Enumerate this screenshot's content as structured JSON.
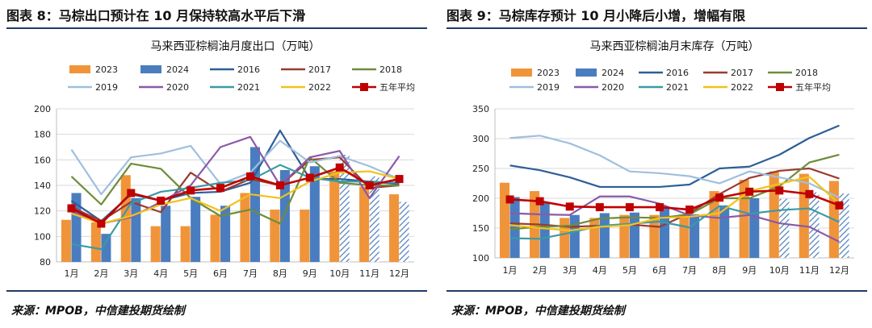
{
  "left": {
    "header": "图表 8：马棕出口预计在 10 月保持较高水平后下滑",
    "source": "来源：MPOB，中信建投期货绘制"
  },
  "right": {
    "header": "图表 9：马棕库存预计 10 月小降后小增，增幅有限",
    "source": "来源：MPOB，中信建投期货绘制"
  },
  "colors": {
    "2023": "#f0943a",
    "2024": "#4a7dbf",
    "2016": "#2d5e95",
    "2017": "#9b3a2f",
    "2018": "#6f8c3a",
    "2019": "#9fbfdf",
    "2020": "#8a5aa8",
    "2021": "#3a9aa6",
    "2022": "#f2c21a",
    "五年平均": "#c00000"
  },
  "chart_data": [
    {
      "type": "bar",
      "title": "马来西亚棕榈油月度出口（万吨）",
      "ylim": [
        80,
        200
      ],
      "yticks": [
        80,
        100,
        120,
        140,
        160,
        180,
        200
      ],
      "categories": [
        "1月",
        "2月",
        "3月",
        "4月",
        "5月",
        "6月",
        "7月",
        "8月",
        "9月",
        "10月",
        "11月",
        "12月"
      ],
      "hatched_from_index": 9,
      "bar_series": [
        {
          "name": "2023",
          "values": [
            113,
            111,
            148,
            108,
            108,
            117,
            134,
            121,
            121,
            151,
            139,
            133
          ]
        },
        {
          "name": "2024",
          "values": [
            134,
            102,
            130,
            124,
            131,
            124,
            170,
            152,
            155,
            164,
            147,
            127
          ]
        }
      ],
      "line_series": [
        {
          "name": "2016",
          "values": [
            128,
            112,
            133,
            128,
            134,
            135,
            142,
            183,
            145,
            145,
            143,
            141
          ]
        },
        {
          "name": "2017",
          "values": [
            123,
            112,
            127,
            119,
            150,
            135,
            145,
            140,
            160,
            162,
            138,
            140
          ]
        },
        {
          "name": "2018",
          "values": [
            147,
            125,
            157,
            153,
            130,
            116,
            121,
            110,
            162,
            142,
            140,
            140
          ]
        },
        {
          "name": "2019",
          "values": [
            168,
            133,
            162,
            165,
            171,
            141,
            150,
            175,
            158,
            163,
            155,
            145
          ]
        },
        {
          "name": "2020",
          "values": [
            120,
            110,
            115,
            127,
            140,
            170,
            178,
            140,
            162,
            167,
            130,
            163
          ]
        },
        {
          "name": "2021",
          "values": [
            94,
            90,
            126,
            135,
            138,
            142,
            144,
            156,
            146,
            143,
            143,
            142
          ]
        },
        {
          "name": "2022",
          "values": [
            118,
            110,
            116,
            125,
            130,
            120,
            133,
            130,
            143,
            150,
            151,
            145
          ]
        },
        {
          "name": "五年平均",
          "values": [
            122,
            110,
            134,
            128,
            136,
            138,
            147,
            140,
            146,
            154,
            140,
            145
          ],
          "markers": true
        }
      ],
      "legend": [
        [
          "2023",
          "bar"
        ],
        [
          "2024",
          "bar"
        ],
        [
          "2016",
          "line"
        ],
        [
          "2017",
          "line"
        ],
        [
          "2018",
          "line"
        ],
        [
          "2019",
          "line"
        ],
        [
          "2020",
          "line"
        ],
        [
          "2021",
          "line"
        ],
        [
          "2022",
          "line"
        ],
        [
          "五年平均",
          "marker"
        ]
      ]
    },
    {
      "type": "bar",
      "title": "马来西亚棕榈油月末库存（万吨）",
      "ylim": [
        100,
        350
      ],
      "yticks": [
        100,
        150,
        200,
        250,
        300,
        350
      ],
      "categories": [
        "1月",
        "2月",
        "3月",
        "4月",
        "5月",
        "6月",
        "7月",
        "8月",
        "9月",
        "10月",
        "11月",
        "12月"
      ],
      "hatched_from_index": 9,
      "bar_series": [
        {
          "name": "2023",
          "values": [
            226,
            212,
            167,
            167,
            172,
            172,
            173,
            212,
            231,
            245,
            241,
            229
          ]
        },
        {
          "name": "2024",
          "values": [
            202,
            192,
            172,
            175,
            176,
            183,
            173,
            188,
            200,
            199,
            210,
            208
          ]
        }
      ],
      "line_series": [
        {
          "name": "2016",
          "values": [
            255,
            247,
            235,
            219,
            219,
            219,
            223,
            250,
            253,
            273,
            301,
            322
          ]
        },
        {
          "name": "2017",
          "values": [
            158,
            156,
            152,
            154,
            156,
            152,
            175,
            207,
            234,
            246,
            250,
            233
          ]
        },
        {
          "name": "2018",
          "values": [
            148,
            152,
            154,
            166,
            168,
            167,
            173,
            200,
            200,
            220,
            260,
            273
          ]
        },
        {
          "name": "2019",
          "values": [
            301,
            305,
            292,
            272,
            245,
            242,
            237,
            225,
            245,
            235,
            225,
            201
          ]
        },
        {
          "name": "2020",
          "values": [
            175,
            173,
            172,
            203,
            203,
            191,
            171,
            167,
            172,
            158,
            152,
            127
          ]
        },
        {
          "name": "2021",
          "values": [
            133,
            132,
            142,
            154,
            157,
            161,
            151,
            187,
            174,
            180,
            183,
            160
          ]
        },
        {
          "name": "2022",
          "values": [
            155,
            150,
            146,
            152,
            155,
            167,
            169,
            175,
            212,
            224,
            236,
            191
          ]
        },
        {
          "name": "五年平均",
          "values": [
            198,
            195,
            186,
            185,
            185,
            185,
            181,
            201,
            211,
            213,
            207,
            188
          ],
          "markers": true
        }
      ],
      "legend": [
        [
          "2023",
          "bar"
        ],
        [
          "2024",
          "bar"
        ],
        [
          "2016",
          "line"
        ],
        [
          "2017",
          "line"
        ],
        [
          "2018",
          "line"
        ],
        [
          "2019",
          "line"
        ],
        [
          "2020",
          "line"
        ],
        [
          "2021",
          "line"
        ],
        [
          "2022",
          "line"
        ],
        [
          "五年平均",
          "marker"
        ]
      ]
    }
  ]
}
